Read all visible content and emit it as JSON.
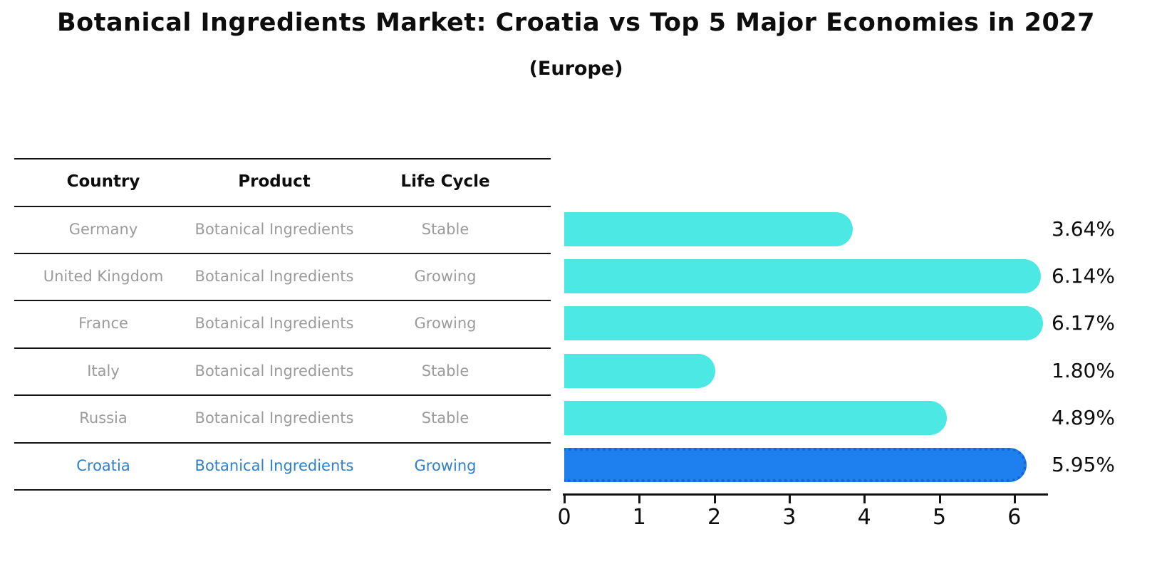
{
  "title": "Botanical Ingredients Market: Croatia vs Top 5 Major Economies in 2027",
  "subtitle": "(Europe)",
  "table": {
    "columns": [
      "Country",
      "Product",
      "Life Cycle"
    ],
    "rows": [
      {
        "country": "Germany",
        "product": "Botanical Ingredients",
        "life_cycle": "Stable",
        "highlight": false
      },
      {
        "country": "United Kingdom",
        "product": "Botanical Ingredients",
        "life_cycle": "Growing",
        "highlight": false
      },
      {
        "country": "France",
        "product": "Botanical Ingredients",
        "life_cycle": "Growing",
        "highlight": false
      },
      {
        "country": "Italy",
        "product": "Botanical Ingredients",
        "life_cycle": "Stable",
        "highlight": false
      },
      {
        "country": "Russia",
        "product": "Botanical Ingredients",
        "life_cycle": "Stable",
        "highlight": false
      },
      {
        "country": "Croatia",
        "product": "Botanical Ingredients",
        "life_cycle": "Growing",
        "highlight": true
      }
    ]
  },
  "chart_data": {
    "type": "bar",
    "orientation": "horizontal",
    "categories": [
      "Germany",
      "United Kingdom",
      "France",
      "Italy",
      "Russia",
      "Croatia"
    ],
    "values": [
      3.64,
      6.14,
      6.17,
      1.8,
      4.89,
      5.95
    ],
    "labels": [
      "3.64%",
      "6.14%",
      "6.17%",
      "1.80%",
      "4.89%",
      "5.95%"
    ],
    "x_ticks": [
      0,
      1,
      2,
      3,
      4,
      5,
      6
    ],
    "xlim": [
      0,
      6.5
    ],
    "grid": false,
    "legend": "none",
    "highlight_index": 5,
    "colors": {
      "bar": "#4BE8E4",
      "highlight_bar": "#1E80EE",
      "highlight_border": "#1566D0",
      "highlight_text": "#2E7FCC",
      "muted_text": "#9B9B9B",
      "line": "#141414"
    }
  }
}
